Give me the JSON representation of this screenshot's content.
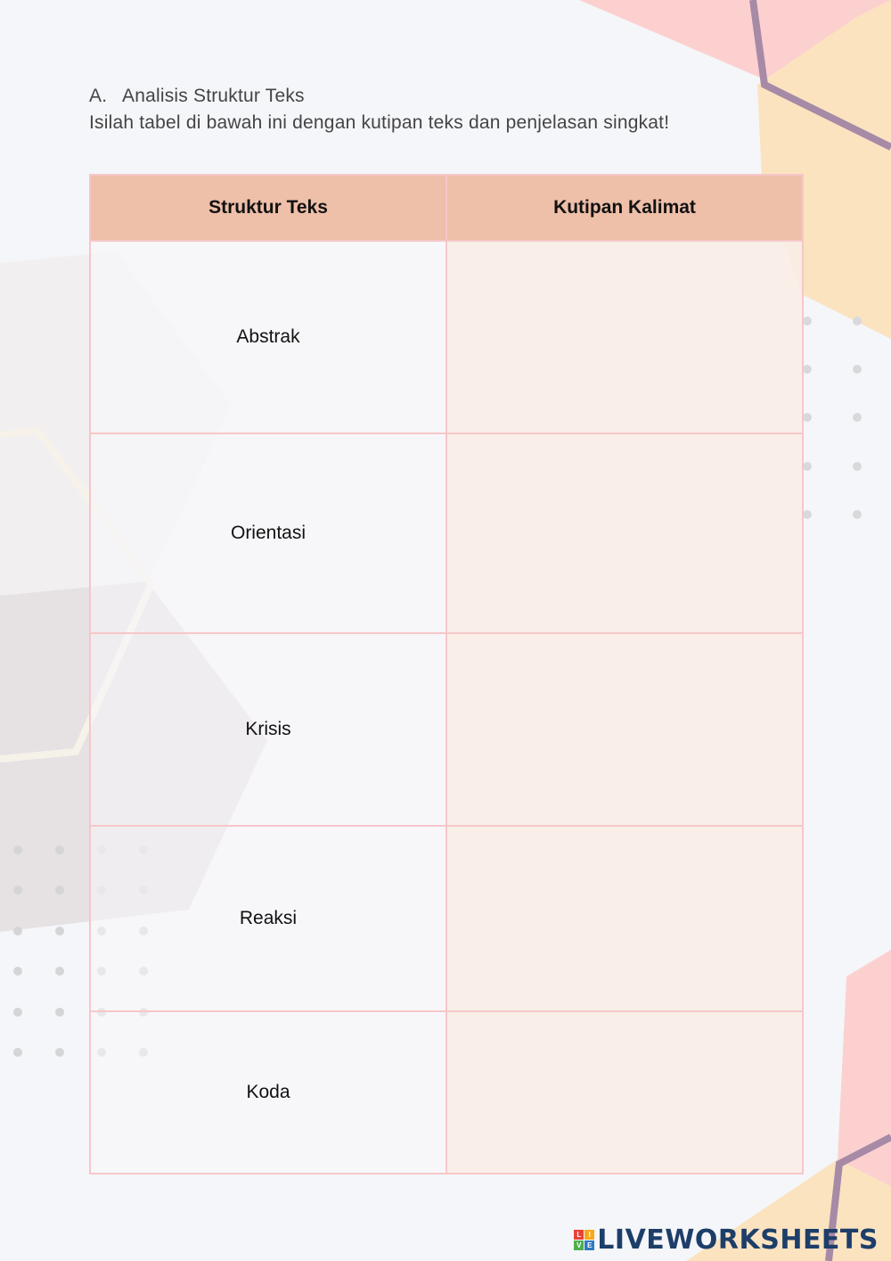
{
  "heading": {
    "number": "A.",
    "title": "Analisis Struktur Teks",
    "instruction": "Isilah tabel di bawah ini dengan kutipan teks dan penjelasan singkat!"
  },
  "table": {
    "headers": [
      "Struktur Teks",
      "Kutipan Kalimat"
    ],
    "rows": [
      {
        "structure": "Abstrak",
        "quote": ""
      },
      {
        "structure": "Orientasi",
        "quote": ""
      },
      {
        "structure": "Krisis",
        "quote": ""
      },
      {
        "structure": "Reaksi",
        "quote": ""
      },
      {
        "structure": "Koda",
        "quote": ""
      }
    ]
  },
  "brand": {
    "logo_letters": [
      "L",
      "I",
      "V",
      "E"
    ],
    "logo_colors": [
      "#e9423a",
      "#f7a81b",
      "#4fae4e",
      "#2f7bbf"
    ],
    "name": "LIVEWORKSHEETS",
    "color": "#1d3e69"
  },
  "colors": {
    "background": "#f5f6f9",
    "header_fill": "#eebfa9",
    "border": "#f6c7c9",
    "quote_fill": "#f8eee6",
    "pink_shape": "#fdd0d0",
    "peach_shape": "#fbe3c0",
    "mauve_line": "#a68aa6",
    "grey_shape": "#e6e1e3",
    "dot": "#d9d9dc"
  }
}
